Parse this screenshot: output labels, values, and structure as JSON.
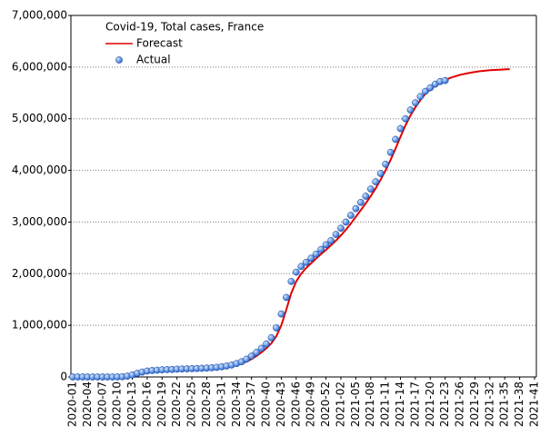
{
  "chart_data": {
    "type": "line-scatter",
    "title": "Covid-19, Total cases, France",
    "categories": [
      "2020-01",
      null,
      null,
      "2020-04",
      null,
      null,
      "2020-07",
      null,
      null,
      "2020-10",
      null,
      null,
      "2020-13",
      null,
      null,
      "2020-16",
      null,
      null,
      "2020-19",
      null,
      null,
      "2020-22",
      null,
      null,
      "2020-25",
      null,
      null,
      "2020-28",
      null,
      null,
      "2020-31",
      null,
      null,
      "2020-34",
      null,
      null,
      "2020-37",
      null,
      null,
      "2020-40",
      null,
      null,
      "2020-43",
      null,
      null,
      "2020-46",
      null,
      null,
      "2020-49",
      null,
      null,
      "2020-52",
      null,
      null,
      "2021-02",
      null,
      null,
      "2021-05",
      null,
      null,
      "2021-08",
      null,
      null,
      "2021-11",
      null,
      null,
      "2021-14",
      null,
      null,
      "2021-17",
      null,
      null,
      "2021-20",
      null,
      null,
      "2021-23",
      null,
      null,
      "2021-26",
      null,
      null,
      "2021-29",
      null,
      null,
      "2021-32",
      null,
      null,
      "2021-35",
      null,
      null,
      "2021-38",
      null,
      null,
      "2021-41"
    ],
    "series": [
      {
        "name": "Forecast",
        "kind": "line",
        "color": "#e00000",
        "values": [
          0,
          0,
          0,
          0,
          0,
          0,
          0,
          0,
          100,
          1000,
          5000,
          16000,
          38000,
          66000,
          90000,
          108000,
          118000,
          124000,
          130000,
          135000,
          140000,
          144000,
          148000,
          152000,
          156000,
          160000,
          164000,
          168000,
          173000,
          180000,
          189000,
          200000,
          215000,
          235000,
          262000,
          298000,
          345000,
          405000,
          475000,
          555000,
          650000,
          790000,
          1000000,
          1300000,
          1620000,
          1850000,
          2000000,
          2110000,
          2200000,
          2290000,
          2380000,
          2460000,
          2550000,
          2640000,
          2740000,
          2850000,
          2970000,
          3100000,
          3230000,
          3360000,
          3500000,
          3650000,
          3820000,
          4000000,
          4200000,
          4420000,
          4650000,
          4870000,
          5060000,
          5220000,
          5360000,
          5480000,
          5570000,
          5640000,
          5700000,
          5750000,
          5790000,
          5820000,
          5850000,
          5870000,
          5890000,
          5905000,
          5920000,
          5930000,
          5940000,
          5945000,
          5950000,
          5955000,
          5960000,
          null,
          null,
          null,
          null,
          null
        ]
      },
      {
        "name": "Actual",
        "kind": "scatter",
        "color": "#1f5fd0",
        "values": [
          0,
          0,
          0,
          0,
          0,
          0,
          0,
          0,
          100,
          1000,
          5000,
          16000,
          40000,
          70000,
          95000,
          115000,
          125000,
          131000,
          138000,
          143000,
          146000,
          151000,
          155000,
          158000,
          161000,
          164000,
          168000,
          172000,
          178000,
          186000,
          197000,
          212000,
          232000,
          260000,
          295000,
          345000,
          405000,
          475000,
          555000,
          640000,
          760000,
          950000,
          1220000,
          1540000,
          1850000,
          2030000,
          2140000,
          2220000,
          2300000,
          2380000,
          2470000,
          2560000,
          2640000,
          2760000,
          2880000,
          3000000,
          3130000,
          3260000,
          3380000,
          3500000,
          3640000,
          3780000,
          3940000,
          4120000,
          4350000,
          4600000,
          4810000,
          5000000,
          5170000,
          5310000,
          5430000,
          5530000,
          5600000,
          5670000,
          5720000,
          5740000,
          null,
          null,
          null,
          null,
          null,
          null,
          null,
          null,
          null,
          null,
          null,
          null,
          null,
          null,
          null,
          null,
          null,
          null
        ]
      }
    ],
    "ylim": [
      0,
      7000000
    ],
    "yticks": [
      0,
      {
        "value": 1000000,
        "label": "1,000,000"
      },
      {
        "value": 2000000,
        "label": "2,000,000"
      },
      {
        "value": 3000000,
        "label": "3,000,000"
      },
      {
        "value": 4000000,
        "label": "4,000,000"
      },
      {
        "value": 5000000,
        "label": "5,000,000"
      },
      {
        "value": 6000000,
        "label": "6,000,000"
      },
      {
        "value": 7000000,
        "label": "7,000,000"
      }
    ],
    "grid": true,
    "legend": "top-left"
  }
}
